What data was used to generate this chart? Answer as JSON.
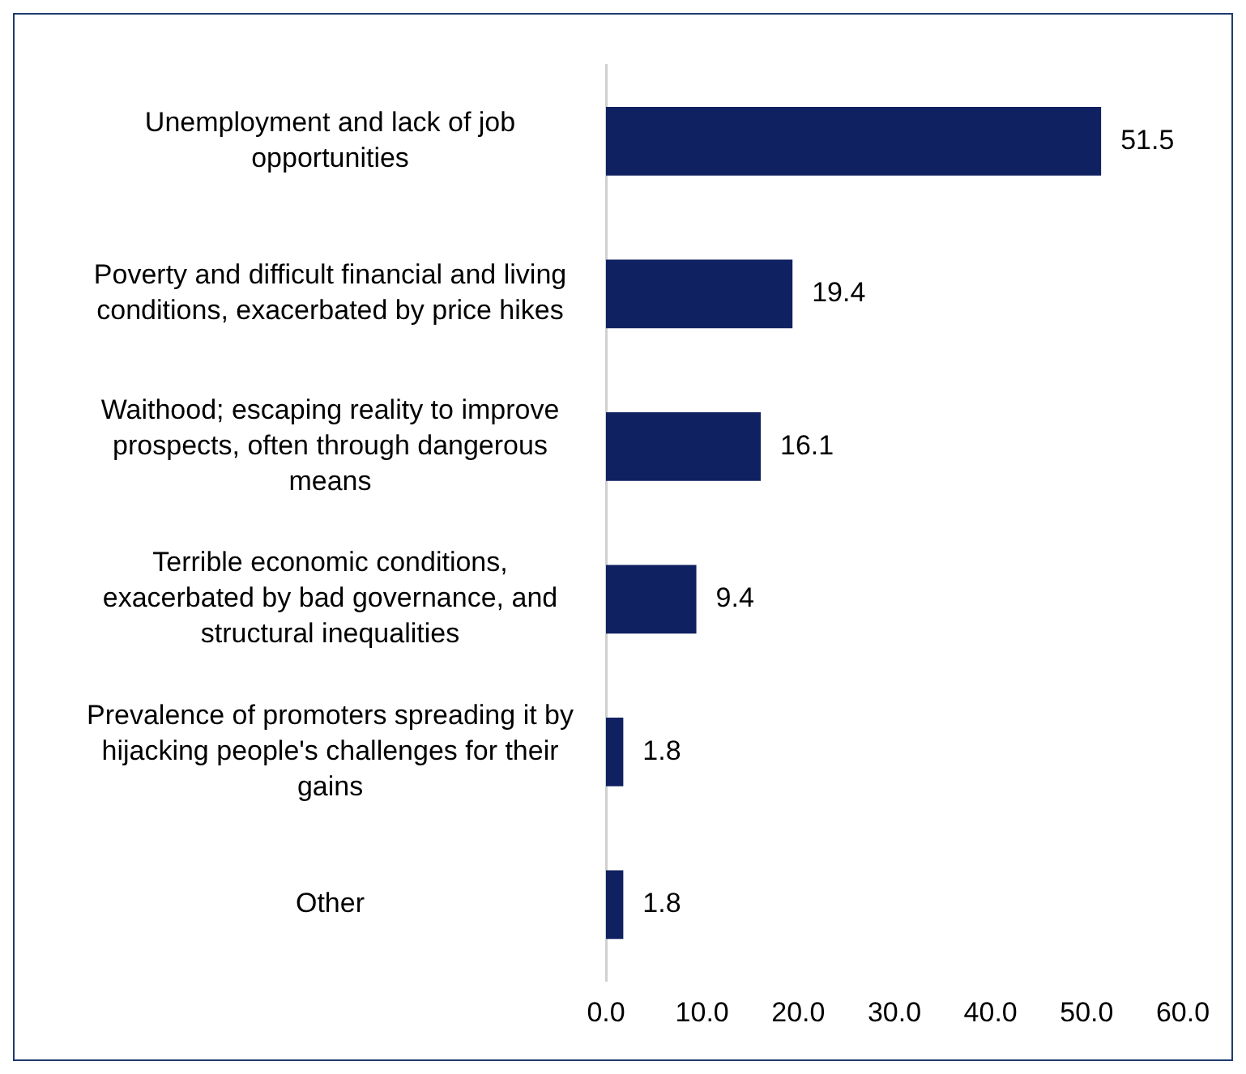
{
  "chart_data": {
    "type": "bar",
    "orientation": "horizontal",
    "categories": [
      "Unemployment and lack of job opportunities",
      "Poverty and difficult financial and living conditions, exacerbated by price hikes",
      "Waithood; escaping reality to improve prospects, often through dangerous means",
      "Terrible economic conditions, exacerbated by bad governance, and structural inequalities",
      "Prevalence of promoters spreading it by hijacking people's challenges for their gains",
      "Other"
    ],
    "values": [
      51.5,
      19.4,
      16.1,
      9.4,
      1.8,
      1.8
    ],
    "color": "#0f2160",
    "xlim": [
      0,
      60
    ],
    "xticks": [
      {
        "value": 0,
        "label": "0.0"
      },
      {
        "value": 10,
        "label": "10.0"
      },
      {
        "value": 20,
        "label": "20.0"
      },
      {
        "value": 30,
        "label": "30.0"
      },
      {
        "value": 40,
        "label": "40.0"
      },
      {
        "value": 50,
        "label": "50.0"
      },
      {
        "value": 60,
        "label": "60.0"
      }
    ],
    "data_labels": true,
    "grid": false,
    "legend": false
  }
}
